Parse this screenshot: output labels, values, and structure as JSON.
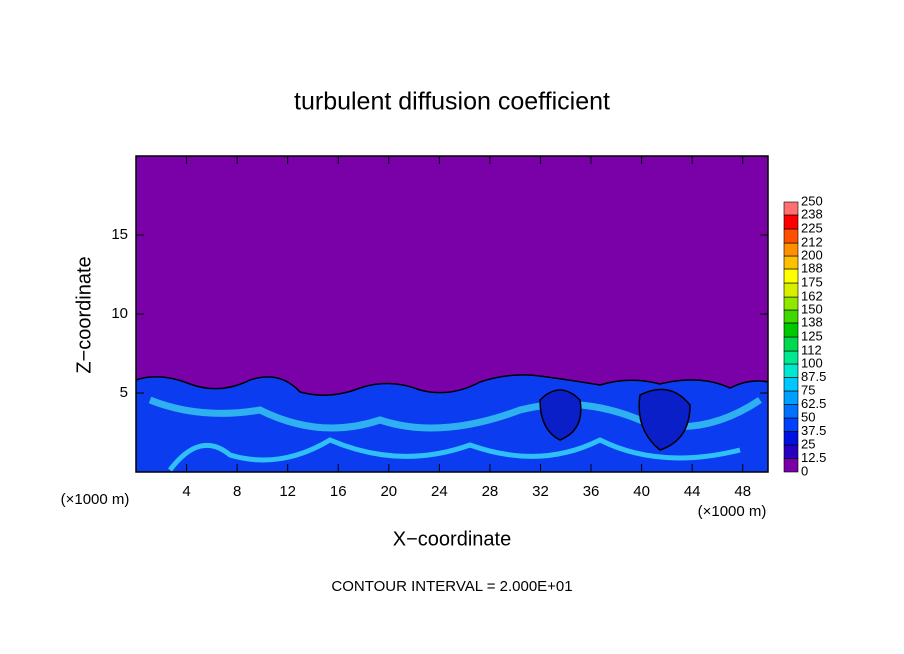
{
  "chart_data": {
    "type": "contour",
    "title": "turbulent diffusion coefficient",
    "xlabel": "X−coordinate",
    "ylabel": "Z−coordinate",
    "x_unit_label": "(×1000 m)",
    "y_unit_label": "(×1000 m)",
    "footnote": "CONTOUR INTERVAL = 2.000E+01",
    "xlim": [
      0,
      50
    ],
    "xticks": [
      4,
      8,
      12,
      16,
      20,
      24,
      28,
      32,
      36,
      40,
      44,
      48
    ],
    "ylim": [
      0,
      20
    ],
    "yticks": [
      5,
      10,
      15
    ],
    "colorbar": {
      "levels": [
        0,
        12.5,
        25,
        37.5,
        50,
        62.5,
        75,
        87.5,
        100,
        112,
        125,
        138,
        150,
        162,
        175,
        188,
        200,
        212,
        225,
        238,
        250
      ],
      "colors": [
        "#7a00a8",
        "#2800c0",
        "#0010e0",
        "#0040ff",
        "#0070ff",
        "#00a0ff",
        "#00c8ff",
        "#00e8d0",
        "#00e890",
        "#00d850",
        "#00c800",
        "#40d800",
        "#90e800",
        "#d8f000",
        "#ffff00",
        "#ffc000",
        "#ff9000",
        "#ff5000",
        "#ff0000",
        "#ff7070"
      ]
    }
  }
}
